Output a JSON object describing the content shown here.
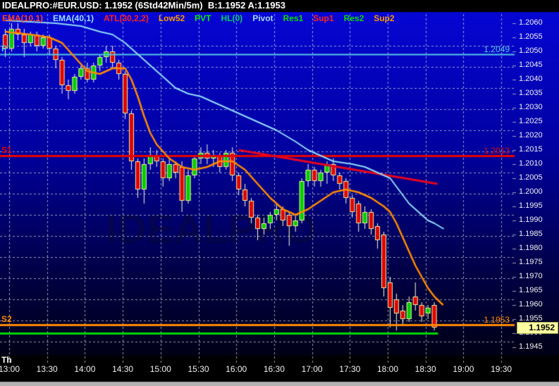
{
  "title": "IDEALPRO:#EUR.USD: 1.1952 (6Std42Min/5m)  B:1.1952 A:1.1953",
  "colors": {
    "titlebar_bg": "#000000",
    "bg_top": "#0606d4",
    "bg_mid": "#0101a0",
    "bg_low": "#000048",
    "bg_bottom": "#000016",
    "grid": "rgba(190,196,206,0.8)",
    "axis_text": "#f2f2f2",
    "candle_up": "#00cc00",
    "candle_down": "#e00000",
    "candle_outline": "#f2f2a2",
    "wick": "#ffffd8",
    "timeband_bg": "#000000",
    "statusbar_bg": "#b2b2b2",
    "last_price_bg": "#ffffa0",
    "watermark": "rgba(8,8,60,0.55)"
  },
  "legend": [
    {
      "label": "EMA(10,1)",
      "color": "#ff4422"
    },
    {
      "label": "EMA(40,1)",
      "color": "#99ddff"
    },
    {
      "label": "ATL(30,2,2)",
      "color": "#ff2222"
    },
    {
      "label": "Low52",
      "color": "#ff9900"
    },
    {
      "label": "PVT",
      "color": "#00ee00"
    },
    {
      "label": "HL(0)",
      "color": "#00cc66"
    },
    {
      "label": "Pivot",
      "color": "#a8d8e8"
    },
    {
      "label": "Res1",
      "color": "#00dd00"
    },
    {
      "label": "Sup1",
      "color": "#ff2222"
    },
    {
      "label": "Res2",
      "color": "#00dd00"
    },
    {
      "label": "Sup2",
      "color": "#ff9900"
    }
  ],
  "chart_data": {
    "type": "candlestick",
    "instrument": "IDEALPRO:#EUR.USD",
    "timeframe": "5m",
    "window": "6Std42Min",
    "last": "1.1952",
    "bid": "1.1952",
    "ask": "1.1953",
    "day_label": "Th",
    "watermark": "IDEALPRO",
    "ylim": [
      1.1943,
      1.2062
    ],
    "y_ticks": [
      "1.2060",
      "1.2055",
      "1.2050",
      "1.2045",
      "1.2040",
      "1.2035",
      "1.2030",
      "1.2025",
      "1.2020",
      "1.2015",
      "1.2010",
      "1.2005",
      "1.2000",
      "1.1995",
      "1.1990",
      "1.1985",
      "1.1980",
      "1.1975",
      "1.1970",
      "1.1965",
      "1.1960",
      "1.1955",
      "1.1950",
      "1.1945"
    ],
    "x_labels": [
      "13:00",
      "13:30",
      "14:00",
      "14:30",
      "15:00",
      "15:30",
      "16:00",
      "16:30",
      "17:00",
      "17:30",
      "18:00",
      "18:30",
      "19:00",
      "19:30"
    ],
    "candles": [
      [
        "12:55",
        1.2056,
        1.2058,
        1.2048,
        1.2051
      ],
      [
        "13:00",
        1.2051,
        1.206,
        1.205,
        1.2058
      ],
      [
        "13:05",
        1.2058,
        1.206,
        1.2054,
        1.2056
      ],
      [
        "13:10",
        1.2056,
        1.2058,
        1.2048,
        1.2053
      ],
      [
        "13:15",
        1.2053,
        1.2057,
        1.2052,
        1.2056
      ],
      [
        "13:20",
        1.2056,
        1.2057,
        1.205,
        1.2052
      ],
      [
        "13:25",
        1.2052,
        1.2056,
        1.2051,
        1.2055
      ],
      [
        "13:30",
        1.2055,
        1.2056,
        1.2049,
        1.2051
      ],
      [
        "13:35",
        1.2051,
        1.2052,
        1.2044,
        1.2047
      ],
      [
        "13:40",
        1.2047,
        1.2048,
        1.2035,
        1.2038
      ],
      [
        "13:45",
        1.2038,
        1.204,
        1.2033,
        1.2036
      ],
      [
        "13:50",
        1.2036,
        1.2042,
        1.2035,
        1.2041
      ],
      [
        "13:55",
        1.2041,
        1.2045,
        1.204,
        1.2044
      ],
      [
        "14:00",
        1.2044,
        1.2046,
        1.2039,
        1.204
      ],
      [
        "14:05",
        1.204,
        1.2046,
        1.2039,
        1.2045
      ],
      [
        "14:10",
        1.2045,
        1.2049,
        1.2043,
        1.2048
      ],
      [
        "14:15",
        1.2048,
        1.2052,
        1.2046,
        1.205
      ],
      [
        "14:20",
        1.205,
        1.2052,
        1.2044,
        1.2046
      ],
      [
        "14:25",
        1.2046,
        1.2047,
        1.204,
        1.2042
      ],
      [
        "14:30",
        1.2042,
        1.2043,
        1.2026,
        1.2028
      ],
      [
        "14:35",
        1.2028,
        1.2029,
        1.2008,
        1.2011
      ],
      [
        "14:40",
        1.2011,
        1.2012,
        1.1998,
        1.2001
      ],
      [
        "14:45",
        1.2001,
        1.2012,
        1.1996,
        1.201
      ],
      [
        "14:50",
        1.201,
        1.2016,
        1.2008,
        1.2013
      ],
      [
        "14:55",
        1.2013,
        1.2015,
        1.2009,
        1.2011
      ],
      [
        "15:00",
        1.2011,
        1.2012,
        1.2002,
        1.2005
      ],
      [
        "15:05",
        1.2005,
        1.2012,
        1.2004,
        1.201
      ],
      [
        "15:10",
        1.201,
        1.2011,
        1.2005,
        1.2007
      ],
      [
        "15:15",
        1.2009,
        1.2011,
        1.1993,
        1.1997
      ],
      [
        "15:20",
        1.1997,
        1.2008,
        1.1996,
        1.2006
      ],
      [
        "15:25",
        1.2006,
        1.2013,
        1.2005,
        1.2012
      ],
      [
        "15:30",
        1.2012,
        1.2016,
        1.201,
        1.2014
      ],
      [
        "15:35",
        1.2014,
        1.2017,
        1.201,
        1.2012
      ],
      [
        "15:40",
        1.2012,
        1.2015,
        1.2009,
        1.2013
      ],
      [
        "15:45",
        1.2013,
        1.2014,
        1.2007,
        1.2009
      ],
      [
        "15:50",
        1.2009,
        1.2015,
        1.2008,
        1.2014
      ],
      [
        "15:55",
        1.2014,
        1.2016,
        1.2004,
        1.2006
      ],
      [
        "16:00",
        1.2006,
        1.2007,
        1.1999,
        1.2001
      ],
      [
        "16:05",
        1.2001,
        1.2003,
        1.1995,
        1.1997
      ],
      [
        "16:10",
        1.1997,
        1.1998,
        1.1989,
        1.1991
      ],
      [
        "16:15",
        1.1991,
        1.1992,
        1.1983,
        1.1987
      ],
      [
        "16:20",
        1.1987,
        1.1991,
        1.1985,
        1.1989
      ],
      [
        "16:25",
        1.1989,
        1.1993,
        1.1987,
        1.1992
      ],
      [
        "16:30",
        1.1992,
        1.1996,
        1.199,
        1.1994
      ],
      [
        "16:35",
        1.1994,
        1.1995,
        1.1988,
        1.199
      ],
      [
        "16:40",
        1.1992,
        1.1993,
        1.1981,
        1.1988
      ],
      [
        "16:45",
        1.1988,
        1.1992,
        1.1986,
        1.199
      ],
      [
        "16:50",
        1.199,
        1.2005,
        1.1989,
        1.2004
      ],
      [
        "16:55",
        1.2004,
        1.201,
        1.2002,
        1.2008
      ],
      [
        "17:00",
        1.2008,
        1.2009,
        1.2002,
        1.2004
      ],
      [
        "17:05",
        1.2004,
        1.2008,
        1.2002,
        1.2007
      ],
      [
        "17:10",
        1.2007,
        1.2011,
        1.2003,
        1.201
      ],
      [
        "17:15",
        1.201,
        1.2012,
        1.2004,
        1.2006
      ],
      [
        "17:20",
        1.2006,
        1.2007,
        1.2001,
        1.2003
      ],
      [
        "17:25",
        1.2004,
        1.2005,
        1.1996,
        1.1998
      ],
      [
        "17:30",
        1.1998,
        1.1999,
        1.1991,
        1.1993
      ],
      [
        "17:35",
        1.1996,
        1.1997,
        1.1986,
        1.1989
      ],
      [
        "17:40",
        1.1989,
        1.1995,
        1.1987,
        1.1993
      ],
      [
        "17:45",
        1.1993,
        1.1994,
        1.1985,
        1.1987
      ],
      [
        "17:50",
        1.1988,
        1.1989,
        1.198,
        1.1983
      ],
      [
        "17:55",
        1.1985,
        1.1986,
        1.1963,
        1.1966
      ],
      [
        "18:00",
        1.1968,
        1.197,
        1.1952,
        1.1959
      ],
      [
        "18:05",
        1.1962,
        1.1964,
        1.1951,
        1.1957
      ],
      [
        "18:10",
        1.1958,
        1.196,
        1.1953,
        1.1955
      ],
      [
        "18:15",
        1.1955,
        1.1963,
        1.1954,
        1.1961
      ],
      [
        "18:20",
        1.1963,
        1.1968,
        1.1958,
        1.196
      ],
      [
        "18:25",
        1.196,
        1.1961,
        1.1954,
        1.1956
      ],
      [
        "18:30",
        1.1957,
        1.196,
        1.1955,
        1.1959
      ],
      [
        "18:35",
        1.196,
        1.1961,
        1.1951,
        1.1952
      ]
    ],
    "overlays": {
      "ema10": {
        "name": "EMA(10)",
        "color": "#ff8a00",
        "width": 2.5,
        "points": [
          [
            0,
            1.2057
          ],
          [
            4,
            1.2056
          ],
          [
            7,
            1.2055
          ],
          [
            9,
            1.2053
          ],
          [
            11,
            1.2048
          ],
          [
            13,
            1.2043
          ],
          [
            15,
            1.2042
          ],
          [
            17,
            1.2044
          ],
          [
            19,
            1.2044
          ],
          [
            20,
            1.204
          ],
          [
            21,
            1.2034
          ],
          [
            22,
            1.2027
          ],
          [
            23,
            1.2021
          ],
          [
            24,
            1.2017
          ],
          [
            26,
            1.2012
          ],
          [
            28,
            1.2009
          ],
          [
            30,
            1.2008
          ],
          [
            32,
            1.2009
          ],
          [
            34,
            1.2011
          ],
          [
            36,
            1.2011
          ],
          [
            38,
            1.2008
          ],
          [
            40,
            1.2003
          ],
          [
            42,
            1.1998
          ],
          [
            44,
            1.1994
          ],
          [
            46,
            1.1992
          ],
          [
            48,
            1.1994
          ],
          [
            50,
            1.1997
          ],
          [
            52,
            1.2
          ],
          [
            54,
            1.2001
          ],
          [
            56,
            1.2
          ],
          [
            58,
            1.1998
          ],
          [
            60,
            1.1995
          ],
          [
            61,
            1.1993
          ],
          [
            62,
            1.1989
          ],
          [
            63,
            1.1984
          ],
          [
            64,
            1.1979
          ],
          [
            65,
            1.1974
          ],
          [
            66,
            1.197
          ],
          [
            67,
            1.1966
          ],
          [
            68,
            1.1963
          ],
          [
            69.4,
            1.196
          ]
        ]
      },
      "ema40": {
        "name": "EMA(40)",
        "color": "#90dcf8",
        "width": 2,
        "points": [
          [
            0,
            1.2061
          ],
          [
            8,
            1.206
          ],
          [
            12,
            1.2059
          ],
          [
            15,
            1.2057
          ],
          [
            17,
            1.2056
          ],
          [
            19,
            1.2053
          ],
          [
            21,
            1.2049
          ],
          [
            23,
            1.2045
          ],
          [
            25,
            1.2041
          ],
          [
            27,
            1.2037
          ],
          [
            29,
            1.2035
          ],
          [
            31,
            1.2034
          ],
          [
            33,
            1.2032
          ],
          [
            35,
            1.203
          ],
          [
            37,
            1.2028
          ],
          [
            40,
            1.2025
          ],
          [
            43,
            1.2022
          ],
          [
            46,
            1.2018
          ],
          [
            48,
            1.2015
          ],
          [
            50,
            1.2013
          ],
          [
            52,
            1.2011
          ],
          [
            55,
            1.201
          ],
          [
            57,
            1.2009
          ],
          [
            59,
            1.2007
          ],
          [
            61,
            1.2005
          ],
          [
            62,
            1.2002
          ],
          [
            63,
            1.1999
          ],
          [
            64,
            1.1996
          ],
          [
            65,
            1.1994
          ],
          [
            66,
            1.1992
          ],
          [
            67,
            1.199
          ],
          [
            68,
            1.1989
          ],
          [
            69.5,
            1.1987
          ]
        ]
      },
      "trendline": {
        "name": "ATL(30,2,2)",
        "color": "#e8001e",
        "width": 3,
        "points": [
          [
            37,
            1.2015
          ],
          [
            68.5,
            1.2003
          ]
        ]
      },
      "levels": [
        {
          "name_label": "P",
          "value_label": "1.2049",
          "price": 1.2049,
          "color": "#55c8e8",
          "width": 2
        },
        {
          "name_label": "S1",
          "value_label": "1.2013",
          "price": 1.2013,
          "color": "#e80000",
          "width": 3
        },
        {
          "name_label": "S2",
          "value_label": "1.1953",
          "price": 1.1953,
          "color": "#ff8a00",
          "width": 3
        },
        {
          "name_label": "",
          "value_label": "",
          "price": 1.195,
          "color": "#00d800",
          "width": 3,
          "end_index": 68.6
        }
      ]
    },
    "last_price_marker": {
      "value": "1.1952",
      "price": 1.1952
    }
  }
}
